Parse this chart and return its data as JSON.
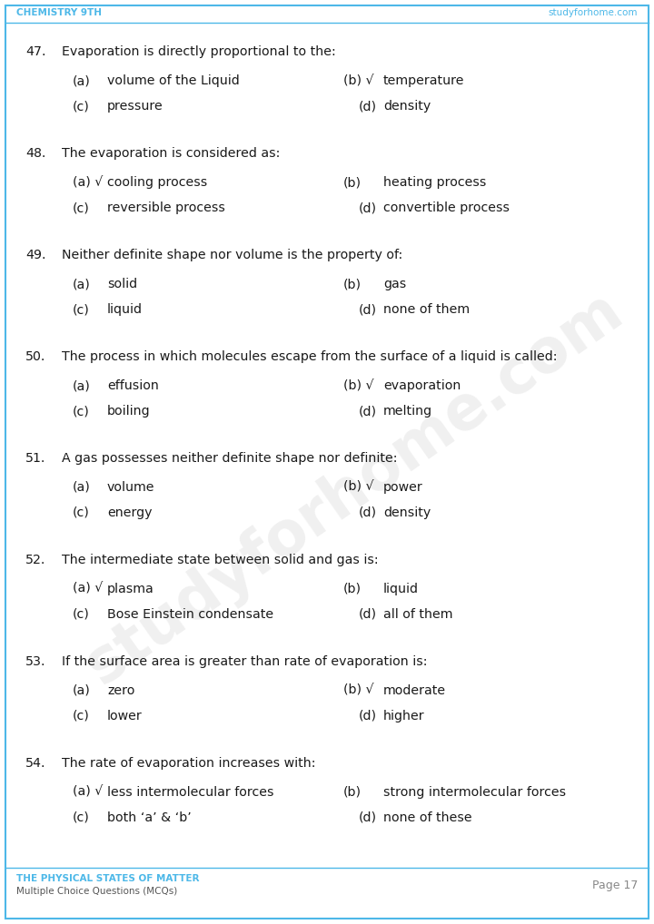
{
  "header_left": "CHEMISTRY 9TH",
  "header_right": "studyforhome.com",
  "footer_left_title": "THE PHYSICAL STATES OF MATTER",
  "footer_left_sub": "Multiple Choice Questions (MCQs)",
  "footer_right": "Page 17",
  "header_color": "#4db8e8",
  "border_color": "#4db8e8",
  "bg_color": "#ffffff",
  "text_color": "#1a1a1a",
  "watermark_text": "studyforhome.com",
  "questions": [
    {
      "num": "47.",
      "question": "Evaporation is directly proportional to the:",
      "options": [
        {
          "label": "(a)",
          "text": "volume of the Liquid",
          "correct": false
        },
        {
          "label": "(b) √",
          "text": "temperature",
          "correct": true
        },
        {
          "label": "(c)",
          "text": "pressure",
          "correct": false
        },
        {
          "label": "(d)",
          "text": "density",
          "correct": false
        }
      ]
    },
    {
      "num": "48.",
      "question": "The evaporation is considered as:",
      "options": [
        {
          "label": "(a) √",
          "text": "cooling process",
          "correct": true
        },
        {
          "label": "(b)",
          "text": "heating process",
          "correct": false
        },
        {
          "label": "(c)",
          "text": "reversible process",
          "correct": false
        },
        {
          "label": "(d)",
          "text": "convertible process",
          "correct": false
        }
      ]
    },
    {
      "num": "49.",
      "question": "Neither definite shape nor volume is the property of:",
      "options": [
        {
          "label": "(a)",
          "text": "solid",
          "correct": false
        },
        {
          "label": "(b)",
          "text": "gas",
          "correct": false
        },
        {
          "label": "(c)",
          "text": "liquid",
          "correct": false
        },
        {
          "label": "(d)",
          "text": "none of them",
          "correct": false
        }
      ]
    },
    {
      "num": "50.",
      "question": "The process in which molecules escape from the surface of a liquid is called:",
      "options": [
        {
          "label": "(a)",
          "text": "effusion",
          "correct": false
        },
        {
          "label": "(b) √",
          "text": "evaporation",
          "correct": true
        },
        {
          "label": "(c)",
          "text": "boiling",
          "correct": false
        },
        {
          "label": "(d)",
          "text": "melting",
          "correct": false
        }
      ]
    },
    {
      "num": "51.",
      "question": "A gas possesses neither definite shape nor definite:",
      "options": [
        {
          "label": "(a)",
          "text": "volume",
          "correct": false
        },
        {
          "label": "(b) √",
          "text": "power",
          "correct": true
        },
        {
          "label": "(c)",
          "text": "energy",
          "correct": false
        },
        {
          "label": "(d)",
          "text": "density",
          "correct": false
        }
      ]
    },
    {
      "num": "52.",
      "question": "The intermediate state between solid and gas is:",
      "options": [
        {
          "label": "(a) √",
          "text": "plasma",
          "correct": true
        },
        {
          "label": "(b)",
          "text": "liquid",
          "correct": false
        },
        {
          "label": "(c)",
          "text": "Bose Einstein condensate",
          "correct": false
        },
        {
          "label": "(d)",
          "text": "all of them",
          "correct": false
        }
      ]
    },
    {
      "num": "53.",
      "question": "If the surface area is greater than rate of evaporation is:",
      "options": [
        {
          "label": "(a)",
          "text": "zero",
          "correct": false
        },
        {
          "label": "(b) √",
          "text": "moderate",
          "correct": true
        },
        {
          "label": "(c)",
          "text": "lower",
          "correct": false
        },
        {
          "label": "(d)",
          "text": "higher",
          "correct": false
        }
      ]
    },
    {
      "num": "54.",
      "question": "The rate of evaporation increases with:",
      "options": [
        {
          "label": "(a) √",
          "text": "less intermolecular forces",
          "correct": true
        },
        {
          "label": "(b)",
          "text": "strong intermolecular forces",
          "correct": false
        },
        {
          "label": "(c)",
          "text": "both ‘a’ & ‘b’",
          "correct": false
        },
        {
          "label": "(d)",
          "text": "none of these",
          "correct": false
        }
      ]
    }
  ]
}
